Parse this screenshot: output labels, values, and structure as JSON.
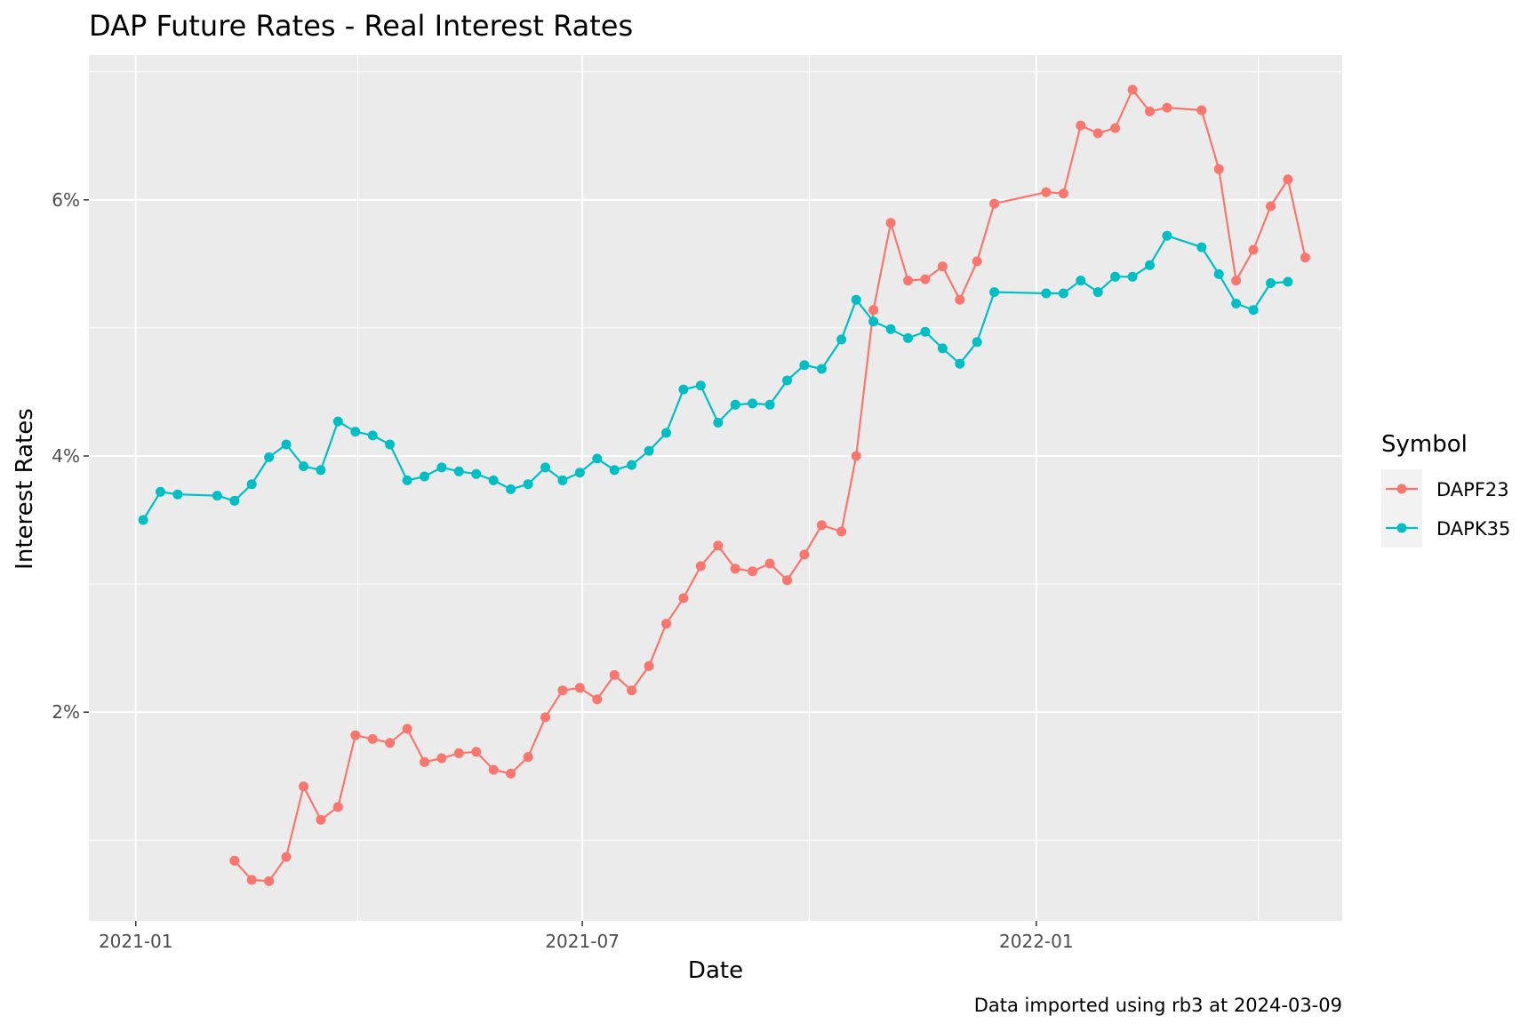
{
  "chart_data": {
    "type": "line",
    "title": "DAP Future Rates - Real Interest Rates",
    "xlabel": "Date",
    "ylabel": "Interest Rates",
    "caption": "Data imported using rb3 at 2024-03-09",
    "legend_title": "Symbol",
    "legend_position": "right",
    "grid": true,
    "background": "#EBEBEB",
    "x_ticks": [
      "2021-01",
      "2021-07",
      "2022-01"
    ],
    "y_ticks": [
      "2%",
      "4%",
      "6%"
    ],
    "xlim": [
      "2020-12-13",
      "2022-05-05"
    ],
    "ylim": [
      0.37,
      7.13
    ],
    "series": [
      {
        "name": "DAPF23",
        "color": "#F8766D",
        "points": [
          [
            "2021-02-10",
            0.84
          ],
          [
            "2021-02-17",
            0.69
          ],
          [
            "2021-02-24",
            0.68
          ],
          [
            "2021-03-03",
            0.87
          ],
          [
            "2021-03-10",
            1.42
          ],
          [
            "2021-03-17",
            1.16
          ],
          [
            "2021-03-24",
            1.26
          ],
          [
            "2021-03-31",
            1.82
          ],
          [
            "2021-04-07",
            1.79
          ],
          [
            "2021-04-14",
            1.76
          ],
          [
            "2021-04-21",
            1.87
          ],
          [
            "2021-04-28",
            1.61
          ],
          [
            "2021-05-05",
            1.64
          ],
          [
            "2021-05-12",
            1.68
          ],
          [
            "2021-05-19",
            1.69
          ],
          [
            "2021-05-26",
            1.55
          ],
          [
            "2021-06-02",
            1.52
          ],
          [
            "2021-06-09",
            1.65
          ],
          [
            "2021-06-16",
            1.96
          ],
          [
            "2021-06-23",
            2.17
          ],
          [
            "2021-06-30",
            2.19
          ],
          [
            "2021-07-07",
            2.1
          ],
          [
            "2021-07-14",
            2.29
          ],
          [
            "2021-07-21",
            2.17
          ],
          [
            "2021-07-28",
            2.36
          ],
          [
            "2021-08-04",
            2.69
          ],
          [
            "2021-08-11",
            2.89
          ],
          [
            "2021-08-18",
            3.14
          ],
          [
            "2021-08-25",
            3.3
          ],
          [
            "2021-09-01",
            3.12
          ],
          [
            "2021-09-08",
            3.1
          ],
          [
            "2021-09-15",
            3.16
          ],
          [
            "2021-09-22",
            3.03
          ],
          [
            "2021-09-29",
            3.23
          ],
          [
            "2021-10-06",
            3.46
          ],
          [
            "2021-10-14",
            3.41
          ],
          [
            "2021-10-20",
            4.0
          ],
          [
            "2021-10-27",
            5.14
          ],
          [
            "2021-11-03",
            5.82
          ],
          [
            "2021-11-10",
            5.37
          ],
          [
            "2021-11-17",
            5.38
          ],
          [
            "2021-11-24",
            5.48
          ],
          [
            "2021-12-01",
            5.22
          ],
          [
            "2021-12-08",
            5.52
          ],
          [
            "2021-12-15",
            5.97
          ],
          [
            "2022-01-05",
            6.06
          ],
          [
            "2022-01-12",
            6.05
          ],
          [
            "2022-01-19",
            6.58
          ],
          [
            "2022-01-26",
            6.52
          ],
          [
            "2022-02-02",
            6.56
          ],
          [
            "2022-02-09",
            6.86
          ],
          [
            "2022-02-16",
            6.69
          ],
          [
            "2022-02-23",
            6.72
          ],
          [
            "2022-03-09",
            6.7
          ],
          [
            "2022-03-16",
            6.24
          ],
          [
            "2022-03-23",
            5.37
          ],
          [
            "2022-03-30",
            5.61
          ],
          [
            "2022-04-06",
            5.95
          ],
          [
            "2022-04-13",
            6.16
          ],
          [
            "2022-04-20",
            5.55
          ]
        ]
      },
      {
        "name": "DAPK35",
        "color": "#00BFC4",
        "points": [
          [
            "2021-01-04",
            3.5
          ],
          [
            "2021-01-11",
            3.72
          ],
          [
            "2021-01-18",
            3.7
          ],
          [
            "2021-02-03",
            3.69
          ],
          [
            "2021-02-10",
            3.65
          ],
          [
            "2021-02-17",
            3.78
          ],
          [
            "2021-02-24",
            3.99
          ],
          [
            "2021-03-03",
            4.09
          ],
          [
            "2021-03-10",
            3.92
          ],
          [
            "2021-03-17",
            3.89
          ],
          [
            "2021-03-24",
            4.27
          ],
          [
            "2021-03-31",
            4.19
          ],
          [
            "2021-04-07",
            4.16
          ],
          [
            "2021-04-14",
            4.09
          ],
          [
            "2021-04-21",
            3.81
          ],
          [
            "2021-04-28",
            3.84
          ],
          [
            "2021-05-05",
            3.91
          ],
          [
            "2021-05-12",
            3.88
          ],
          [
            "2021-05-19",
            3.86
          ],
          [
            "2021-05-26",
            3.81
          ],
          [
            "2021-06-02",
            3.74
          ],
          [
            "2021-06-09",
            3.78
          ],
          [
            "2021-06-16",
            3.91
          ],
          [
            "2021-06-23",
            3.81
          ],
          [
            "2021-06-30",
            3.87
          ],
          [
            "2021-07-07",
            3.98
          ],
          [
            "2021-07-14",
            3.89
          ],
          [
            "2021-07-21",
            3.93
          ],
          [
            "2021-07-28",
            4.04
          ],
          [
            "2021-08-04",
            4.18
          ],
          [
            "2021-08-11",
            4.52
          ],
          [
            "2021-08-18",
            4.55
          ],
          [
            "2021-08-25",
            4.26
          ],
          [
            "2021-09-01",
            4.4
          ],
          [
            "2021-09-08",
            4.41
          ],
          [
            "2021-09-15",
            4.4
          ],
          [
            "2021-09-22",
            4.59
          ],
          [
            "2021-09-29",
            4.71
          ],
          [
            "2021-10-06",
            4.68
          ],
          [
            "2021-10-14",
            4.91
          ],
          [
            "2021-10-20",
            5.22
          ],
          [
            "2021-10-27",
            5.05
          ],
          [
            "2021-11-03",
            4.99
          ],
          [
            "2021-11-10",
            4.92
          ],
          [
            "2021-11-17",
            4.97
          ],
          [
            "2021-11-24",
            4.84
          ],
          [
            "2021-12-01",
            4.72
          ],
          [
            "2021-12-08",
            4.89
          ],
          [
            "2021-12-15",
            5.28
          ],
          [
            "2022-01-05",
            5.27
          ],
          [
            "2022-01-12",
            5.27
          ],
          [
            "2022-01-19",
            5.37
          ],
          [
            "2022-01-26",
            5.28
          ],
          [
            "2022-02-02",
            5.4
          ],
          [
            "2022-02-09",
            5.4
          ],
          [
            "2022-02-16",
            5.49
          ],
          [
            "2022-02-23",
            5.72
          ],
          [
            "2022-03-09",
            5.63
          ],
          [
            "2022-03-16",
            5.42
          ],
          [
            "2022-03-23",
            5.19
          ],
          [
            "2022-03-30",
            5.14
          ],
          [
            "2022-04-06",
            5.35
          ],
          [
            "2022-04-13",
            5.36
          ]
        ]
      }
    ]
  }
}
